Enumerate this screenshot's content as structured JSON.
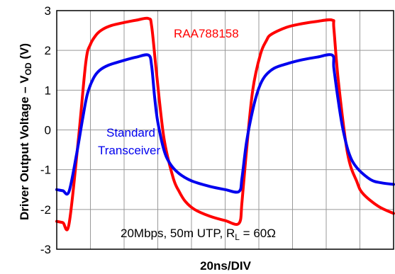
{
  "chart_data": {
    "type": "line",
    "xlabel": "20ns/DIV",
    "ylabel_main": "Driver Output Voltage – V",
    "ylabel_sub": "OD",
    "ylabel_tail": " (V)",
    "ylim": [
      -3,
      3
    ],
    "yticks": [
      3,
      2,
      1,
      0,
      -1,
      -2,
      -3
    ],
    "ytick_labels": [
      "3",
      "2",
      "1",
      "0",
      "-1",
      "-2",
      "-3"
    ],
    "xdivisions": 10,
    "grid": true,
    "xlim": [
      0,
      220
    ],
    "annotation": {
      "main": "20Mbps, 50m UTP, R",
      "sub": "L",
      "tail": " = 60Ω"
    },
    "series": [
      {
        "name": "RAA788158",
        "color": "#ff0000",
        "x": [
          0,
          4,
          8,
          14,
          19,
          22,
          26,
          30,
          36,
          44,
          52,
          60,
          62,
          65,
          70,
          76,
          80,
          84,
          90,
          100,
          110,
          119,
          121,
          124,
          128,
          133,
          137,
          140,
          150,
          160,
          170,
          180,
          181,
          184,
          190,
          196,
          200,
          210,
          220
        ],
        "y": [
          -2.3,
          -2.33,
          -2.37,
          -0.3,
          1.7,
          2.15,
          2.4,
          2.53,
          2.63,
          2.7,
          2.76,
          2.8,
          2.6,
          1.5,
          -0.2,
          -1.2,
          -1.55,
          -1.8,
          -2.0,
          -2.17,
          -2.28,
          -2.35,
          -1.8,
          -0.5,
          1.0,
          1.9,
          2.25,
          2.4,
          2.58,
          2.67,
          2.73,
          2.76,
          2.55,
          1.2,
          -0.6,
          -1.3,
          -1.6,
          -1.92,
          -2.1
        ]
      },
      {
        "name": "Standard Transceiver",
        "color": "#0000ee",
        "x": [
          0,
          4,
          8,
          13,
          17,
          20,
          24,
          28,
          34,
          44,
          52,
          60,
          62,
          64,
          66,
          70,
          74,
          80,
          88,
          100,
          110,
          119,
          121,
          124,
          128,
          132,
          136,
          142,
          150,
          160,
          170,
          180,
          181,
          184,
          187,
          191,
          196,
          205,
          212,
          220
        ],
        "y": [
          -1.5,
          -1.53,
          -1.55,
          -0.6,
          0.3,
          0.9,
          1.3,
          1.5,
          1.63,
          1.75,
          1.83,
          1.88,
          1.6,
          0.8,
          0.2,
          -0.5,
          -0.85,
          -1.1,
          -1.28,
          -1.42,
          -1.5,
          -1.55,
          -1.2,
          -0.3,
          0.5,
          1.05,
          1.35,
          1.55,
          1.66,
          1.76,
          1.83,
          1.88,
          1.55,
          0.7,
          0.0,
          -0.6,
          -0.95,
          -1.25,
          -1.33,
          -1.37
        ]
      }
    ],
    "labels": {
      "series0": "RAA788158",
      "series1_line1": "Standard",
      "series1_line2": "Transceiver"
    }
  }
}
